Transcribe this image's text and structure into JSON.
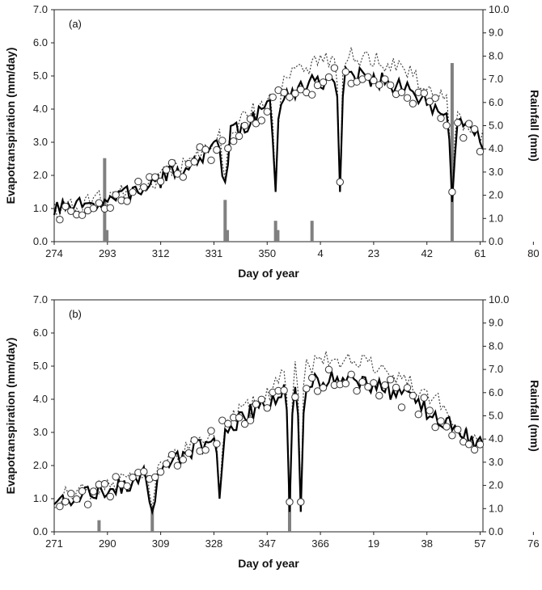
{
  "chart_data": [
    {
      "type": "line",
      "panel_label": "(a)",
      "xlabel": "Day of year",
      "ylabel": "Evapotranspiration (mm/day)",
      "ylabel_right": "Rainfall (mm)",
      "ylim": [
        0,
        7
      ],
      "ylim_right": [
        0,
        10
      ],
      "y_ticks": [
        "0.0",
        "1.0",
        "2.0",
        "3.0",
        "4.0",
        "5.0",
        "6.0",
        "7.0"
      ],
      "y_right_ticks": [
        "0.0",
        "1.0",
        "2.0",
        "3.0",
        "4.0",
        "5.0",
        "6.0",
        "7.0",
        "8.0",
        "9.0",
        "10.0"
      ],
      "x_tick_labels": [
        "274",
        "293",
        "312",
        "331",
        "350",
        "4",
        "23",
        "42",
        "61",
        "80"
      ],
      "grid": false,
      "rainfall_bars": [
        {
          "x": 18.0,
          "value": 3.6
        },
        {
          "x": 18.8,
          "value": 0.5
        },
        {
          "x": 61.0,
          "value": 1.8
        },
        {
          "x": 61.8,
          "value": 0.5
        },
        {
          "x": 79.0,
          "value": 0.9
        },
        {
          "x": 79.8,
          "value": 0.5
        },
        {
          "x": 92.0,
          "value": 0.9
        },
        {
          "x": 142.0,
          "value": 7.7
        }
      ]
    },
    {
      "type": "line",
      "panel_label": "(b)",
      "xlabel": "Day of year",
      "ylabel": "Evapotranspiration (mm/day)",
      "ylabel_right": "Rainfall (mm)",
      "ylim": [
        0,
        7
      ],
      "ylim_right": [
        0,
        10
      ],
      "y_ticks": [
        "0.0",
        "1.0",
        "2.0",
        "3.0",
        "4.0",
        "5.0",
        "6.0",
        "7.0"
      ],
      "y_right_ticks": [
        "0.0",
        "1.0",
        "2.0",
        "3.0",
        "4.0",
        "5.0",
        "6.0",
        "7.0",
        "8.0",
        "9.0",
        "10.0"
      ],
      "x_tick_labels": [
        "271",
        "290",
        "309",
        "328",
        "347",
        "366",
        "19",
        "38",
        "57",
        "76"
      ],
      "grid": false,
      "rainfall_bars": [
        {
          "x": 16.0,
          "value": 0.5
        },
        {
          "x": 35.0,
          "value": 1.0
        },
        {
          "x": 84.0,
          "value": 2.0
        }
      ]
    }
  ]
}
